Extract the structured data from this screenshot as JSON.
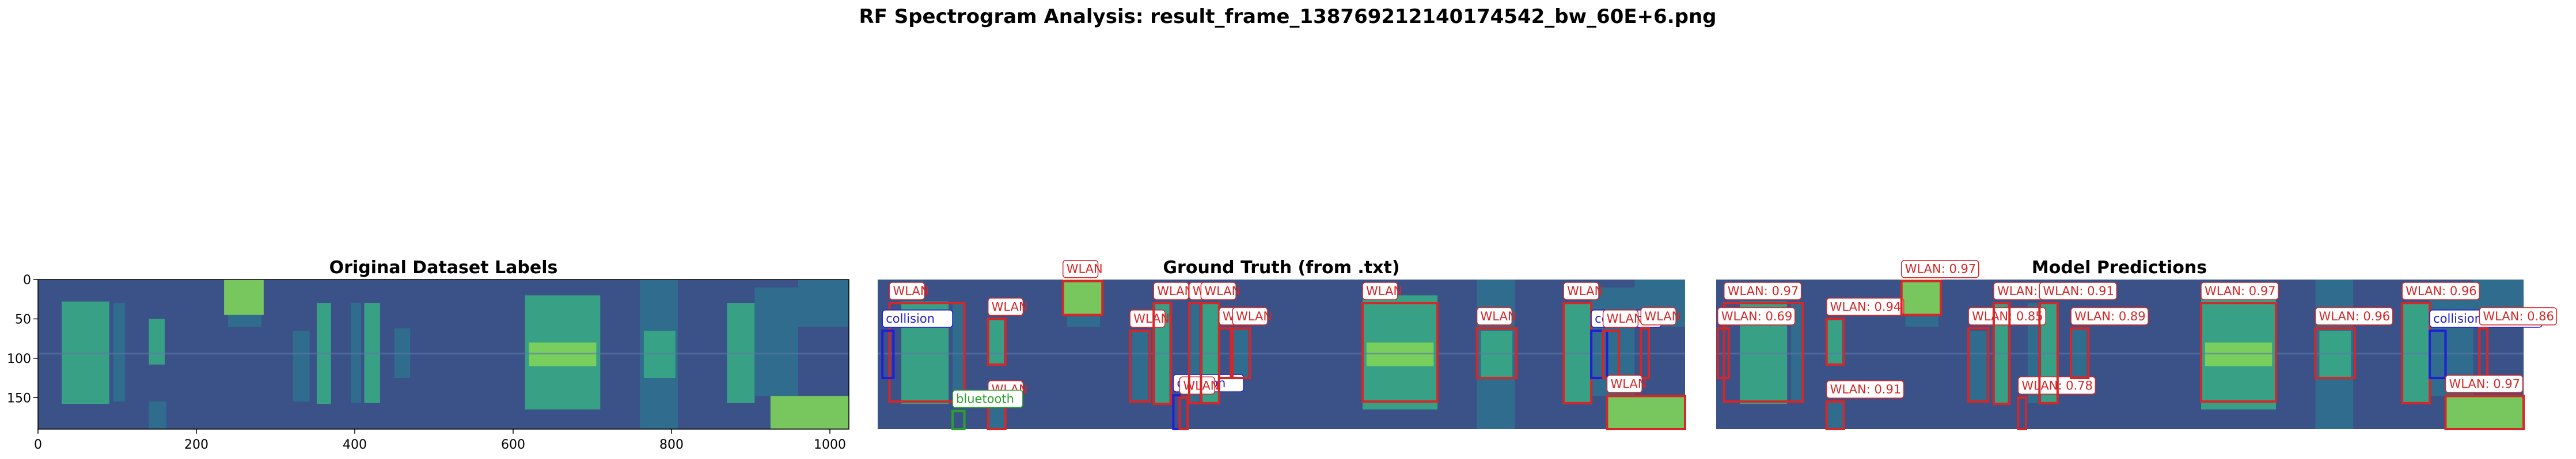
{
  "suptitle": "RF Spectrogram Analysis: result_frame_138769212140174542_bw_60E+6.png",
  "colors": {
    "background": "#3b5288",
    "wlan": "#d62728",
    "collision": "#1f1fd6",
    "bluetooth": "#2ca02c",
    "band_bright": "#7fd45a",
    "band_mid": "#38a985",
    "band_low": "#2f6f8e"
  },
  "chart_data": [
    {
      "type": "heatmap",
      "title": "Original Dataset Labels",
      "xlim": [
        0,
        1024
      ],
      "ylim": [
        190,
        0
      ],
      "xticks": [
        0,
        200,
        400,
        600,
        800,
        1000
      ],
      "yticks": [
        0,
        50,
        100,
        150
      ],
      "show_axes": true,
      "boxes": []
    },
    {
      "type": "heatmap",
      "title": "Ground Truth (from .txt)",
      "xlim": [
        0,
        1024
      ],
      "ylim": [
        190,
        0
      ],
      "show_axes": false,
      "boxes": [
        {
          "cls": "wlan",
          "label": "WLAN",
          "x0": 15,
          "y0": 30,
          "x1": 110,
          "y1": 155
        },
        {
          "cls": "collision",
          "label": "collision",
          "x0": 6,
          "y0": 65,
          "x1": 20,
          "y1": 125
        },
        {
          "cls": "wlan",
          "label": "WLAN",
          "x0": 140,
          "y0": 50,
          "x1": 162,
          "y1": 108
        },
        {
          "cls": "wlan",
          "label": "WLAN",
          "x0": 235,
          "y0": 2,
          "x1": 285,
          "y1": 45
        },
        {
          "cls": "wlan",
          "label": "WLAN",
          "x0": 140,
          "y0": 155,
          "x1": 162,
          "y1": 190
        },
        {
          "cls": "bluetooth",
          "label": "bluetooth",
          "x0": 95,
          "y0": 167,
          "x1": 110,
          "y1": 190
        },
        {
          "cls": "wlan",
          "label": "WLAN",
          "x0": 320,
          "y0": 65,
          "x1": 345,
          "y1": 155
        },
        {
          "cls": "wlan",
          "label": "WLAN",
          "x0": 350,
          "y0": 30,
          "x1": 372,
          "y1": 158
        },
        {
          "cls": "collision",
          "label": "collision",
          "x0": 375,
          "y0": 147,
          "x1": 383,
          "y1": 190
        },
        {
          "cls": "wlan",
          "label": "WLAN",
          "x0": 383,
          "y0": 150,
          "x1": 393,
          "y1": 190
        },
        {
          "cls": "wlan",
          "label": "WLAN",
          "x0": 395,
          "y0": 30,
          "x1": 410,
          "y1": 157
        },
        {
          "cls": "wlan",
          "label": "WLAN",
          "x0": 410,
          "y0": 30,
          "x1": 433,
          "y1": 157
        },
        {
          "cls": "wlan",
          "label": "WLAN",
          "x0": 433,
          "y0": 62,
          "x1": 448,
          "y1": 125
        },
        {
          "cls": "wlan",
          "label": "WLAN",
          "x0": 450,
          "y0": 62,
          "x1": 472,
          "y1": 125
        },
        {
          "cls": "wlan",
          "label": "WLAN",
          "x0": 615,
          "y0": 30,
          "x1": 710,
          "y1": 155
        },
        {
          "cls": "wlan",
          "label": "WLAN",
          "x0": 760,
          "y0": 62,
          "x1": 810,
          "y1": 125
        },
        {
          "cls": "wlan",
          "label": "WLAN",
          "x0": 870,
          "y0": 30,
          "x1": 905,
          "y1": 157
        },
        {
          "cls": "collision",
          "label": "collision",
          "x0": 905,
          "y0": 65,
          "x1": 925,
          "y1": 125
        },
        {
          "cls": "wlan",
          "label": "WLAN",
          "x0": 920,
          "y0": 65,
          "x1": 940,
          "y1": 125
        },
        {
          "cls": "wlan",
          "label": "WLAN",
          "x0": 968,
          "y0": 62,
          "x1": 978,
          "y1": 125
        },
        {
          "cls": "wlan",
          "label": "WLAN",
          "x0": 925,
          "y0": 148,
          "x1": 1024,
          "y1": 190
        }
      ]
    },
    {
      "type": "heatmap",
      "title": "Model Predictions",
      "xlim": [
        0,
        1024
      ],
      "ylim": [
        190,
        0
      ],
      "show_axes": false,
      "boxes": [
        {
          "cls": "wlan",
          "label": "WLAN: 0.97",
          "x0": 10,
          "y0": 30,
          "x1": 110,
          "y1": 155
        },
        {
          "cls": "wlan",
          "label": "WLAN: 0.69",
          "x0": 2,
          "y0": 62,
          "x1": 16,
          "y1": 125
        },
        {
          "cls": "wlan",
          "label": "WLAN: 0.94",
          "x0": 140,
          "y0": 50,
          "x1": 162,
          "y1": 108
        },
        {
          "cls": "wlan",
          "label": "WLAN: 0.97",
          "x0": 235,
          "y0": 2,
          "x1": 285,
          "y1": 45
        },
        {
          "cls": "wlan",
          "label": "WLAN: 0.91",
          "x0": 140,
          "y0": 155,
          "x1": 162,
          "y1": 190
        },
        {
          "cls": "wlan",
          "label": "WLAN: 0.85",
          "x0": 320,
          "y0": 62,
          "x1": 345,
          "y1": 155
        },
        {
          "cls": "wlan",
          "label": "WLAN: 0.78",
          "x0": 383,
          "y0": 150,
          "x1": 393,
          "y1": 190
        },
        {
          "cls": "wlan",
          "label": "WLAN: 0.90",
          "x0": 352,
          "y0": 30,
          "x1": 372,
          "y1": 158
        },
        {
          "cls": "wlan",
          "label": "WLAN: 0.91",
          "x0": 410,
          "y0": 30,
          "x1": 433,
          "y1": 157
        },
        {
          "cls": "wlan",
          "label": "WLAN: 0.89",
          "x0": 450,
          "y0": 62,
          "x1": 472,
          "y1": 125
        },
        {
          "cls": "wlan",
          "label": "WLAN: 0.97",
          "x0": 615,
          "y0": 30,
          "x1": 710,
          "y1": 155
        },
        {
          "cls": "wlan",
          "label": "WLAN: 0.96",
          "x0": 760,
          "y0": 62,
          "x1": 810,
          "y1": 125
        },
        {
          "cls": "wlan",
          "label": "WLAN: 0.96",
          "x0": 870,
          "y0": 30,
          "x1": 905,
          "y1": 157
        },
        {
          "cls": "collision",
          "label": "collision: 0.82",
          "x0": 905,
          "y0": 65,
          "x1": 925,
          "y1": 125
        },
        {
          "cls": "wlan",
          "label": "WLAN: 0.86",
          "x0": 968,
          "y0": 62,
          "x1": 978,
          "y1": 125
        },
        {
          "cls": "wlan",
          "label": "WLAN: 0.97",
          "x0": 925,
          "y0": 148,
          "x1": 1024,
          "y1": 190
        }
      ]
    }
  ],
  "bands": [
    {
      "x0": 30,
      "x1": 90,
      "y0": 28,
      "y1": 158,
      "c": "band_mid"
    },
    {
      "x0": 95,
      "x1": 110,
      "y0": 30,
      "y1": 155,
      "c": "band_low"
    },
    {
      "x0": 140,
      "x1": 160,
      "y0": 50,
      "y1": 108,
      "c": "band_mid"
    },
    {
      "x0": 235,
      "x1": 285,
      "y0": 0,
      "y1": 45,
      "c": "band_bright"
    },
    {
      "x0": 240,
      "x1": 282,
      "y0": 45,
      "y1": 60,
      "c": "band_low"
    },
    {
      "x0": 140,
      "x1": 162,
      "y0": 155,
      "y1": 190,
      "c": "band_low"
    },
    {
      "x0": 322,
      "x1": 343,
      "y0": 65,
      "y1": 155,
      "c": "band_low"
    },
    {
      "x0": 352,
      "x1": 370,
      "y0": 30,
      "y1": 158,
      "c": "band_mid"
    },
    {
      "x0": 395,
      "x1": 408,
      "y0": 30,
      "y1": 157,
      "c": "band_low"
    },
    {
      "x0": 412,
      "x1": 432,
      "y0": 30,
      "y1": 157,
      "c": "band_mid"
    },
    {
      "x0": 450,
      "x1": 470,
      "y0": 62,
      "y1": 125,
      "c": "band_low"
    },
    {
      "x0": 615,
      "x1": 710,
      "y0": 20,
      "y1": 165,
      "c": "band_mid"
    },
    {
      "x0": 620,
      "x1": 705,
      "y0": 80,
      "y1": 110,
      "c": "band_bright"
    },
    {
      "x0": 760,
      "x1": 808,
      "y0": 0,
      "y1": 190,
      "c": "band_low"
    },
    {
      "x0": 765,
      "x1": 805,
      "y0": 65,
      "y1": 125,
      "c": "band_mid"
    },
    {
      "x0": 870,
      "x1": 905,
      "y0": 30,
      "y1": 157,
      "c": "band_mid"
    },
    {
      "x0": 905,
      "x1": 960,
      "y0": 10,
      "y1": 148,
      "c": "band_low"
    },
    {
      "x0": 925,
      "x1": 1024,
      "y0": 148,
      "y1": 190,
      "c": "band_bright"
    },
    {
      "x0": 960,
      "x1": 1024,
      "y0": 0,
      "y1": 60,
      "c": "band_low"
    }
  ]
}
